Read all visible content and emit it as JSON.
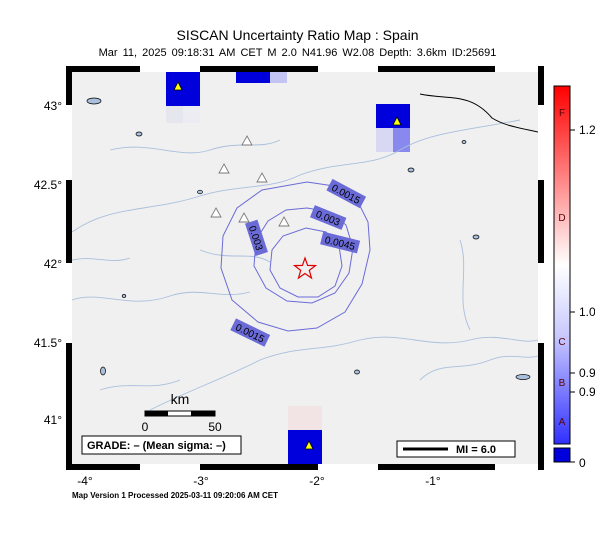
{
  "title": "SISCAN Uncertainty Ratio Map : Spain",
  "subtitle": "Mar 11, 2025 09:18:31 AM CET   M 2.0   N41.96 W2.08   Depth: 3.6km   ID:25691",
  "footer": "Map Version 1 Processed 2025-03-11 09:20:06 AM CET",
  "map": {
    "x_ticks": [
      "-4°",
      "-3°",
      "-2°",
      "-1°"
    ],
    "y_ticks": [
      "43°",
      "42.5°",
      "42°",
      "41.5°",
      "41°"
    ],
    "contour_labels": [
      "0.0015",
      "0.003",
      "0.0045",
      "0.003",
      "0.0015"
    ],
    "scale_bar": {
      "unit": "km",
      "start": "0",
      "end": "50"
    },
    "grade_box": "GRADE: – (Mean sigma: –)",
    "mi_legend": "MI = 6.0",
    "epicenter": {
      "lat": 41.96,
      "lon": -2.08
    },
    "colors": {
      "ocean": "#f0f0f0",
      "rivers": "#a9bfdc",
      "contours": "#6b6bd8",
      "high_cell": "#0000cc",
      "epicenter": "#dd0000"
    }
  },
  "colorbar": {
    "grade_letters": [
      "F",
      "D",
      "C",
      "B",
      "A"
    ],
    "value_labels": [
      "1.2",
      "1.0",
      "0.9",
      "0.9",
      "0"
    ]
  }
}
